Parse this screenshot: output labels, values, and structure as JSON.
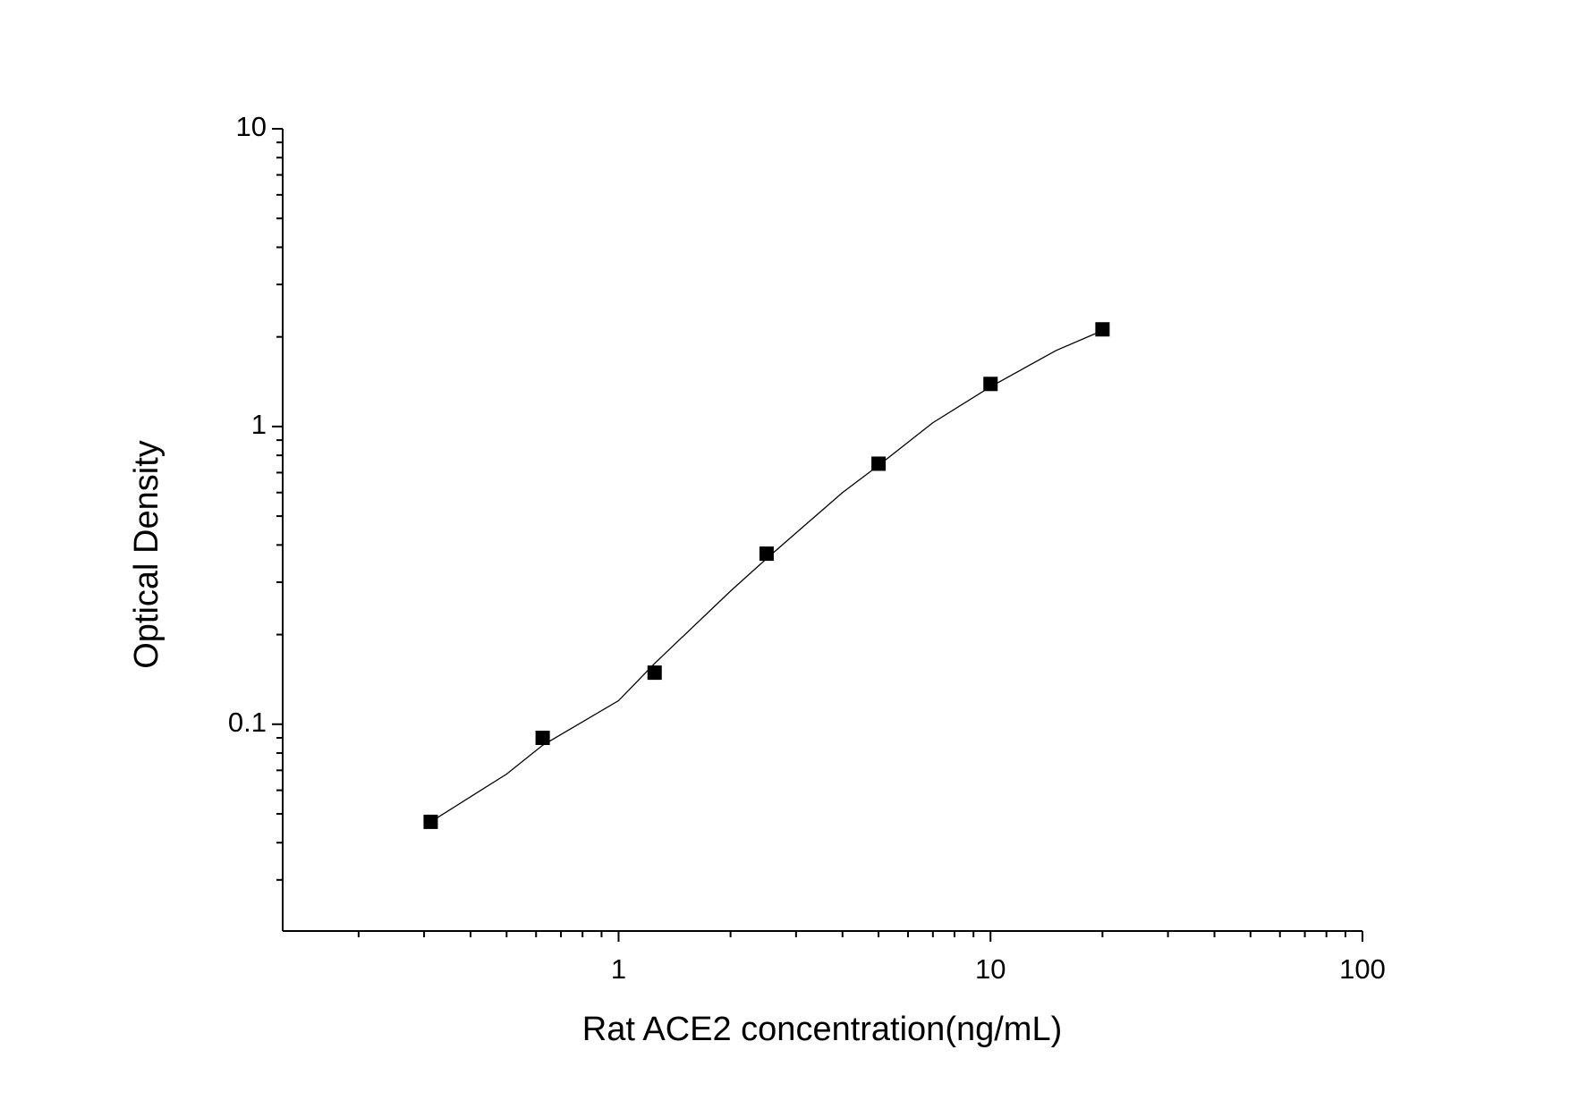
{
  "chart_data": {
    "type": "scatter",
    "x_label": "Rat ACE2 concentration(ng/mL)",
    "y_label": "Optical Density",
    "x_log": true,
    "y_log": true,
    "xlim": [
      0.125,
      100
    ],
    "ylim": [
      0.0202,
      10
    ],
    "xticks": [
      1,
      10,
      100
    ],
    "yticks": [
      0.1,
      1,
      10
    ],
    "xminor_ticks": [
      0.2,
      0.3,
      0.4,
      0.5,
      0.6,
      0.7,
      0.8,
      0.9,
      2,
      3,
      4,
      5,
      6,
      7,
      8,
      9,
      20,
      30,
      40,
      50,
      60,
      70,
      80,
      90
    ],
    "yminor_ticks": [
      0.03,
      0.04,
      0.05,
      0.06,
      0.07,
      0.08,
      0.09,
      0.2,
      0.3,
      0.4,
      0.5,
      0.6,
      0.7,
      0.8,
      0.9,
      2,
      3,
      4,
      5,
      6,
      7,
      8,
      9
    ],
    "series": [
      {
        "type": "scatter",
        "color": "#000000",
        "x": [
          0.3125,
          0.625,
          1.25,
          2.5,
          5,
          10,
          20
        ],
        "values": [
          0.047,
          0.09,
          0.149,
          0.374,
          0.75,
          1.39,
          2.12
        ]
      },
      {
        "type": "line",
        "color": "#000000",
        "x": [
          0.3125,
          0.5,
          0.625,
          1,
          1.25,
          2,
          2.5,
          4,
          5,
          7,
          10,
          15,
          20
        ],
        "values": [
          0.047,
          0.068,
          0.085,
          0.12,
          0.16,
          0.28,
          0.36,
          0.6,
          0.74,
          1.03,
          1.36,
          1.8,
          2.1
        ]
      }
    ]
  }
}
